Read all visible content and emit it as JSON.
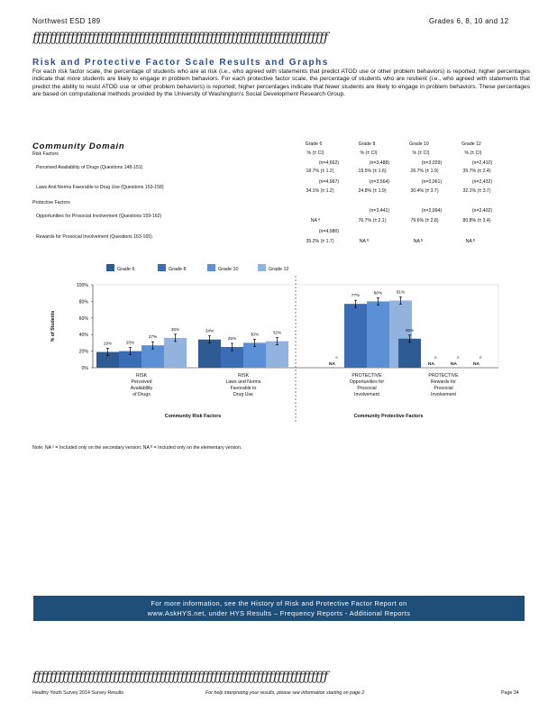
{
  "header": {
    "left": "Northwest ESD 189",
    "right": "Grades 6, 8, 10 and 12",
    "decor": "ƒƒƒƒƒƒƒƒƒƒƒƒƒƒƒƒƒƒƒƒƒƒƒƒƒƒƒƒƒƒƒƒƒƒƒƒƒƒƒƒƒƒƒƒƒƒƒƒƒƒƒƒƒƒƒƒƒƒƒƒƒƒƒƒƒƒƒƒƒƒ"
  },
  "section": {
    "title": "Risk and Protective Factor Scale Results and Graphs",
    "intro": "For each risk factor scale, the percentage of students who are at risk (i.e., who agreed with statements that predict ATOD use or other problem behaviors) is reported; higher percentages indicate that more students are likely to engage in problem behaviors. For each protective factor scale, the percentage of students who are resilient (i.e., who agreed with statements that predict the ability to resist ATOD use or other problem behaviors) is reported; higher percentages indicate that fewer students are likely to engage in problem behaviors. These percentages are based on computational methods provided by the University of Washington's Social Development Research Group."
  },
  "domain": {
    "title": "Community Domain",
    "risk_header": "Risk Factors",
    "protective_header": "Protective Factors",
    "columns": [
      {
        "grade": "Grade 6",
        "metric": "% (± CI)"
      },
      {
        "grade": "Grade 8",
        "metric": "% (± CI)"
      },
      {
        "grade": "Grade 10",
        "metric": "% (± CI)"
      },
      {
        "grade": "Grade 12",
        "metric": "% (± CI)"
      }
    ],
    "rows": [
      {
        "label": "Perceived Availability of Drugs (Questions 148-151)",
        "n": [
          "(n=4,662)",
          "(n=3,488)",
          "(n=3,029)",
          "(n=2,410)"
        ],
        "v": [
          "18.7% (± 1.2)",
          "19.5% (± 1.6)",
          "26.7% (± 1.9)",
          "35.7% (± 2.4)"
        ]
      },
      {
        "label": "Laws And Norms Favorable to Drug Use (Questions 153-158)",
        "n": [
          "(n=4,967)",
          "(n=3,564)",
          "(n=3,061)",
          "(n=2,432)"
        ],
        "v": [
          "34.1% (± 1.2)",
          "24.8% (± 1.9)",
          "30.4% (± 3.7)",
          "32.1% (± 3.7)"
        ]
      },
      {
        "label": "Opportunities for Prosocial Involvement (Questions 159-162)",
        "n": [
          "",
          "(n=3,441)",
          "(n=2,994)",
          "(n=2,402)"
        ],
        "v": [
          "NA ⁸",
          "76.7% (± 2.1)",
          "79.6% (± 2.8)",
          "80.8% (± 3.4)"
        ]
      },
      {
        "label": "Rewards for Prosocial Involvement (Questions 163-165)",
        "n": [
          "(n=4,980)",
          "",
          "",
          ""
        ],
        "v": [
          "35.2% (± 1.7)",
          "NA ᴱ",
          "NA ᴱ",
          "NA ᴱ"
        ]
      }
    ]
  },
  "chart_data": {
    "type": "bar",
    "legend": [
      "Grade 6",
      "Grade 8",
      "Grade 10",
      "Grade 12"
    ],
    "colors": [
      "#2e5b94",
      "#3a6db5",
      "#5b8fd6",
      "#93b3df"
    ],
    "ylabel": "% of Students",
    "yticks": [
      "0%",
      "20%",
      "40%",
      "60%",
      "80%",
      "100%"
    ],
    "ylim": [
      0,
      100
    ],
    "groups": [
      {
        "label": [
          "RISK",
          "Perceived",
          "Availability",
          "of Drugs"
        ],
        "values": [
          19,
          20,
          27,
          36
        ],
        "labels": [
          "19%",
          "20%",
          "27%",
          "36%"
        ]
      },
      {
        "label": [
          "RISK",
          "Laws and Norms",
          "Favorable to",
          "Drug Use"
        ],
        "values": [
          34,
          25,
          30,
          32
        ],
        "labels": [
          "34%",
          "25%",
          "30%",
          "32%"
        ]
      },
      {
        "label": [
          "PROTECTIVE",
          "Opportunities for",
          "Prosocial",
          "Involvement"
        ],
        "values": [
          null,
          77,
          80,
          81
        ],
        "labels": [
          "NA S",
          "77%",
          "80%",
          "81%"
        ]
      },
      {
        "label": [
          "PROTECTIVE",
          "Rewards for",
          "Prosocial",
          "Involvement"
        ],
        "values": [
          35,
          null,
          null,
          null
        ],
        "labels": [
          "35%",
          "NA E",
          "NA E",
          "NA E"
        ]
      }
    ],
    "section_labels": [
      "Community Risk Factors",
      "Community Protective Factors"
    ]
  },
  "note": "Note: NA ˢ = Included only on the secondary version; NA ᴱ = Included only on the elementary version.",
  "banner": {
    "line1": "For more information, see the History of Risk and Protective Factor Report on",
    "line2": "www.AskHYS.net, under HYS Results – Frequency Reports - Additional Reports"
  },
  "footer": {
    "left": "Healthy Youth Survey 2014 Survey Results",
    "middle": "For help interpreting your results, please see information starting on page 2",
    "right": "Page 34"
  }
}
